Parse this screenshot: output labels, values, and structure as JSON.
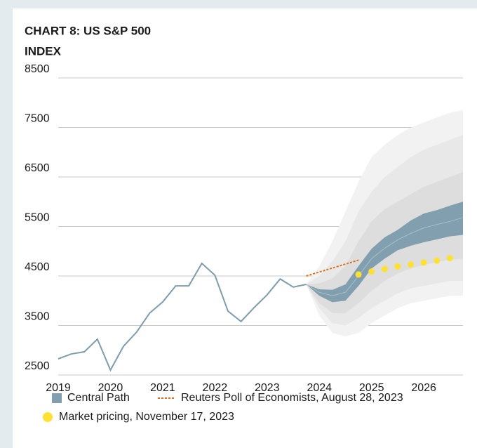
{
  "chart_data": {
    "type": "fan",
    "title": [
      "CHART 8: US S&P 500",
      "INDEX"
    ],
    "xlim": [
      2019,
      2026.75
    ],
    "xticks": [
      2019,
      2020,
      2021,
      2022,
      2023,
      2024,
      2025,
      2026
    ],
    "ylim": [
      2500,
      8500
    ],
    "yticks": [
      2500,
      3500,
      4500,
      5500,
      6500,
      7500,
      8500
    ],
    "grid": true,
    "history": {
      "color": "#7e9cab",
      "x": [
        2019,
        2019.25,
        2019.5,
        2019.75,
        2020,
        2020.25,
        2020.5,
        2020.75,
        2021,
        2021.25,
        2021.5,
        2021.75,
        2022,
        2022.25,
        2022.5,
        2022.75,
        2023,
        2023.25,
        2023.5,
        2023.75
      ],
      "values": [
        2826,
        2925,
        2968,
        3223,
        2600,
        3080,
        3365,
        3750,
        3975,
        4300,
        4300,
        4755,
        4515,
        3790,
        3580,
        3860,
        4120,
        4440,
        4275,
        4330
      ]
    },
    "forecast_x": [
      2023.75,
      2024,
      2024.25,
      2024.5,
      2024.75,
      2025,
      2025.25,
      2025.5,
      2025.75,
      2026,
      2026.25,
      2026.5,
      2026.75
    ],
    "bands": [
      {
        "color": "#f2f2f2",
        "upper": [
          4330,
          4700,
          5200,
          5800,
          6400,
          6900,
          7150,
          7350,
          7500,
          7600,
          7700,
          7800,
          7850
        ],
        "lower": [
          4330,
          3700,
          3350,
          3280,
          3350,
          3550,
          3700,
          3850,
          3950,
          4000,
          4050,
          4100,
          4100
        ]
      },
      {
        "color": "#e8e8e8",
        "upper": [
          4330,
          4500,
          4800,
          5200,
          5800,
          6200,
          6500,
          6700,
          6900,
          7050,
          7150,
          7250,
          7350
        ],
        "lower": [
          4330,
          3850,
          3550,
          3500,
          3650,
          3850,
          4000,
          4150,
          4250,
          4300,
          4350,
          4400,
          4400
        ]
      },
      {
        "color": "#dddddd",
        "upper": [
          4330,
          4350,
          4450,
          4700,
          5200,
          5600,
          5850,
          6000,
          6150,
          6300,
          6400,
          6500,
          6600
        ],
        "lower": [
          4330,
          3950,
          3750,
          3750,
          3950,
          4200,
          4400,
          4550,
          4650,
          4720,
          4780,
          4830,
          4850
        ]
      }
    ],
    "central": {
      "name": "Central Path",
      "color": "#819fae",
      "line_color": "#a9bfca",
      "upper": [
        4330,
        4230,
        4220,
        4330,
        4700,
        5050,
        5280,
        5430,
        5620,
        5760,
        5830,
        5920,
        6000
      ],
      "lower": [
        4330,
        4100,
        3970,
        4000,
        4300,
        4650,
        4850,
        5020,
        5110,
        5180,
        5240,
        5300,
        5330
      ],
      "median": [
        4330,
        4170,
        4100,
        4170,
        4500,
        4850,
        5060,
        5230,
        5360,
        5470,
        5540,
        5600,
        5680
      ]
    },
    "reuters": {
      "name": "Reuters Poll of Economists, August 28, 2023",
      "color": "#e07020",
      "x": [
        2023.75,
        2024.75
      ],
      "values": [
        4500,
        4820
      ]
    },
    "market": {
      "name": "Market pricing, November 17, 2023",
      "color": "#ffe033",
      "x": [
        2024.75,
        2025,
        2025.25,
        2025.5,
        2025.75,
        2026,
        2026.25,
        2026.5
      ],
      "values": [
        4530,
        4590,
        4640,
        4690,
        4730,
        4770,
        4810,
        4860
      ]
    }
  }
}
